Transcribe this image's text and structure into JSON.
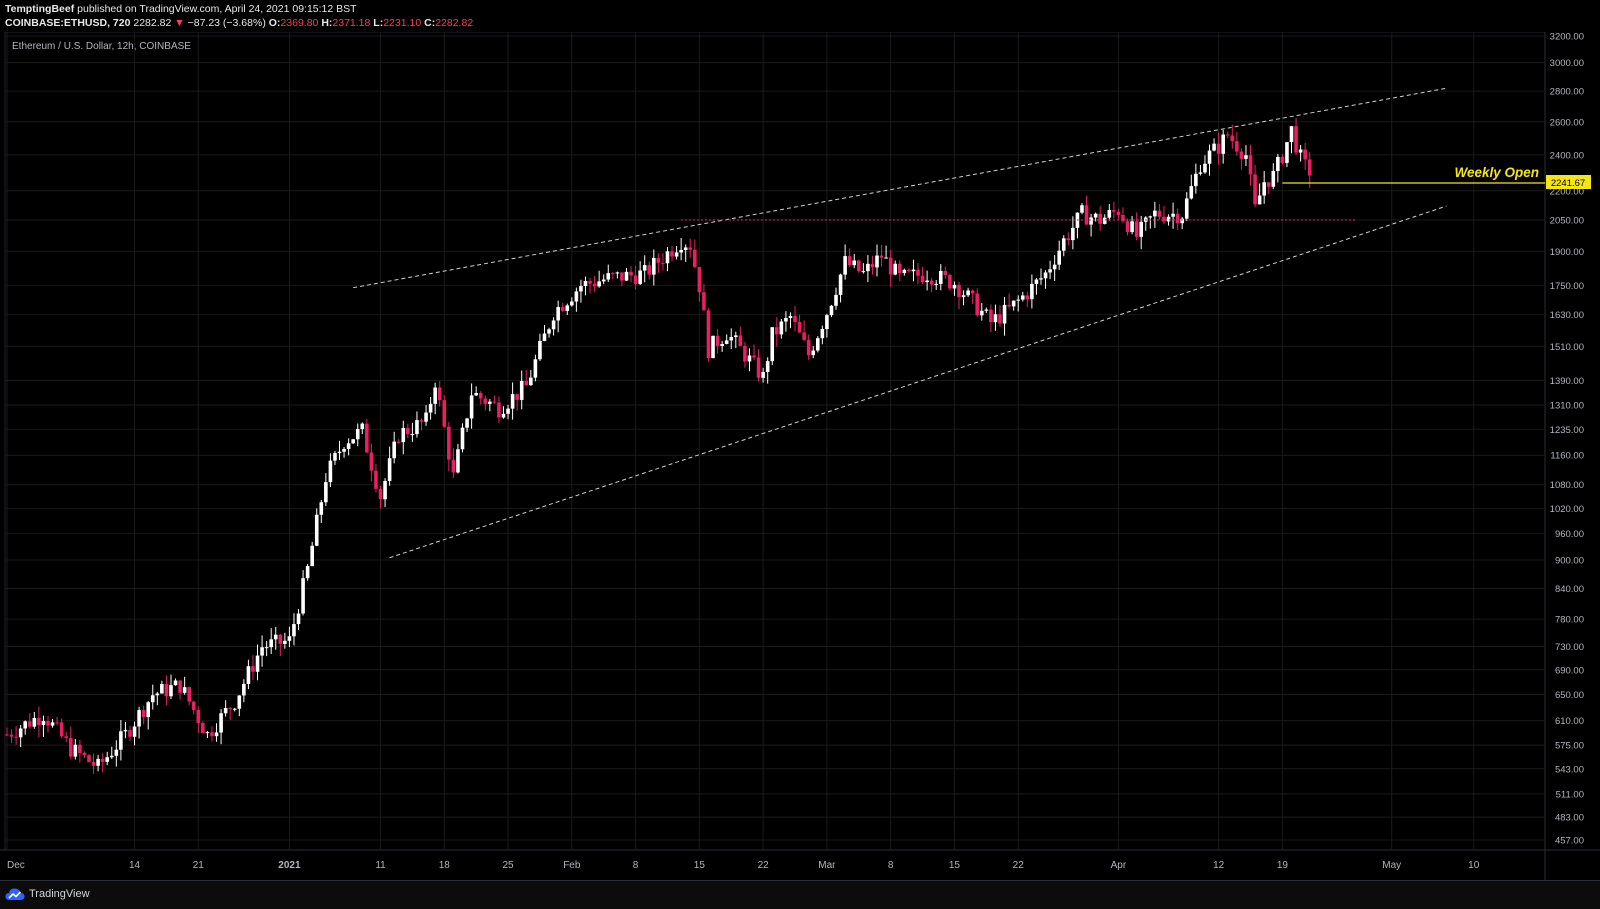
{
  "header": {
    "author": "TemptingBeef",
    "published": "published on TradingView.com, April 24, 2021 09:15:12 BST",
    "symbol": "COINBASE:ETHUSD, 720",
    "last": "2282.82",
    "change_arrow": "▼",
    "change": "−87.23 (−3.68%)",
    "o_label": "O:",
    "o": "2369.80",
    "h_label": "H:",
    "h": "2371.18",
    "l_label": "L:",
    "l": "2231.10",
    "c_label": "C:",
    "c": "2282.82"
  },
  "chart_title": "Ethereum / U.S. Dollar, 12h, COINBASE",
  "annotation": {
    "text": "Weekly Open",
    "value": "2241.67",
    "color": "#f5e516"
  },
  "footer": {
    "brand": "TradingView"
  },
  "colors": {
    "up": "#ffffff",
    "down": "#e91e63",
    "grid": "#1a1a1a",
    "axis_text": "#b2b5be"
  },
  "chart_data": {
    "type": "candlestick",
    "interval": "12h",
    "scale": "log",
    "y_ticks": [
      "457.00",
      "483.00",
      "511.00",
      "543.00",
      "575.00",
      "610.00",
      "650.00",
      "690.00",
      "730.00",
      "780.00",
      "840.00",
      "900.00",
      "960.00",
      "1020.00",
      "1080.00",
      "1160.00",
      "1235.00",
      "1310.00",
      "1390.00",
      "1510.00",
      "1630.00",
      "1750.00",
      "1900.00",
      "2050.00",
      "2200.00",
      "2400.00",
      "2600.00",
      "2800.00",
      "3000.00",
      "3200.00"
    ],
    "x_ticks": [
      "Dec",
      "14",
      "21",
      "2021",
      "11",
      "18",
      "25",
      "Feb",
      "8",
      "15",
      "22",
      "Mar",
      "8",
      "15",
      "22",
      "Apr",
      "12",
      "19",
      "May",
      "10"
    ],
    "close_path": [
      {
        "day": 0,
        "close": 590
      },
      {
        "day": 4,
        "close": 620
      },
      {
        "day": 7,
        "close": 570
      },
      {
        "day": 10,
        "close": 545
      },
      {
        "day": 13,
        "close": 590
      },
      {
        "day": 16,
        "close": 650
      },
      {
        "day": 19,
        "close": 665
      },
      {
        "day": 22,
        "close": 590
      },
      {
        "day": 25,
        "close": 640
      },
      {
        "day": 28,
        "close": 730
      },
      {
        "day": 31,
        "close": 740
      },
      {
        "day": 33,
        "close": 880
      },
      {
        "day": 35,
        "close": 1100
      },
      {
        "day": 37,
        "close": 1200
      },
      {
        "day": 39,
        "close": 1230
      },
      {
        "day": 41,
        "close": 1050
      },
      {
        "day": 43,
        "close": 1220
      },
      {
        "day": 46,
        "close": 1260
      },
      {
        "day": 47,
        "close": 1390
      },
      {
        "day": 49,
        "close": 1100
      },
      {
        "day": 51,
        "close": 1350
      },
      {
        "day": 54,
        "close": 1300
      },
      {
        "day": 57,
        "close": 1370
      },
      {
        "day": 60,
        "close": 1640
      },
      {
        "day": 63,
        "close": 1750
      },
      {
        "day": 66,
        "close": 1780
      },
      {
        "day": 70,
        "close": 1800
      },
      {
        "day": 74,
        "close": 1950
      },
      {
        "day": 75,
        "close": 1930
      },
      {
        "day": 76,
        "close": 1750
      },
      {
        "day": 77,
        "close": 1500
      },
      {
        "day": 79,
        "close": 1560
      },
      {
        "day": 81,
        "close": 1480
      },
      {
        "day": 83,
        "close": 1400
      },
      {
        "day": 84,
        "close": 1550
      },
      {
        "day": 86,
        "close": 1620
      },
      {
        "day": 88,
        "close": 1480
      },
      {
        "day": 90,
        "close": 1640
      },
      {
        "day": 92,
        "close": 1850
      },
      {
        "day": 94,
        "close": 1800
      },
      {
        "day": 96,
        "close": 1880
      },
      {
        "day": 98,
        "close": 1780
      },
      {
        "day": 101,
        "close": 1800
      },
      {
        "day": 104,
        "close": 1760
      },
      {
        "day": 106,
        "close": 1680
      },
      {
        "day": 108,
        "close": 1600
      },
      {
        "day": 110,
        "close": 1650
      },
      {
        "day": 112,
        "close": 1720
      },
      {
        "day": 114,
        "close": 1800
      },
      {
        "day": 116,
        "close": 1950
      },
      {
        "day": 118,
        "close": 2080
      },
      {
        "day": 120,
        "close": 2050
      },
      {
        "day": 122,
        "close": 2100
      },
      {
        "day": 124,
        "close": 1970
      },
      {
        "day": 126,
        "close": 2080
      },
      {
        "day": 129,
        "close": 2080
      },
      {
        "day": 131,
        "close": 2350
      },
      {
        "day": 133,
        "close": 2450
      },
      {
        "day": 134,
        "close": 2520
      },
      {
        "day": 136,
        "close": 2400
      },
      {
        "day": 137,
        "close": 2100
      },
      {
        "day": 138,
        "close": 2250
      },
      {
        "day": 139,
        "close": 2280
      },
      {
        "day": 140,
        "close": 2400
      },
      {
        "day": 141,
        "close": 2550
      },
      {
        "day": 142,
        "close": 2380
      },
      {
        "day": 143,
        "close": 2282.82
      }
    ],
    "trendlines": [
      {
        "name": "channel-upper",
        "from": {
          "day": 38,
          "price": 1740
        },
        "to": {
          "day": 158,
          "price": 2820
        }
      },
      {
        "name": "channel-lower",
        "from": {
          "day": 42,
          "price": 905
        },
        "to": {
          "day": 158,
          "price": 2120
        }
      }
    ],
    "horizontal_levels": [
      {
        "name": "resistance",
        "price": 2050,
        "from_day": 74,
        "to_day": 148,
        "style": "dotted",
        "color": "#e91e63"
      },
      {
        "name": "weekly-open",
        "price": 2241.67,
        "from_day": 140,
        "to_day": 166,
        "style": "solid",
        "color": "#f5e516"
      }
    ]
  }
}
